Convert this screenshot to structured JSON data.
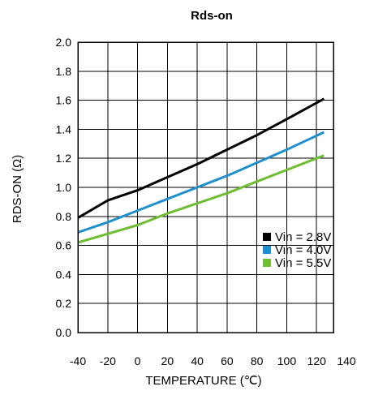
{
  "chart_data": {
    "type": "line",
    "title": "Rds-on",
    "xlabel": "TEMPERATURE (℃)",
    "ylabel": "RDS-ON (Ω)",
    "xlim": [
      -40,
      140
    ],
    "ylim": [
      0,
      2.0
    ],
    "x_ticks": [
      "-40",
      "-20",
      "0",
      "20",
      "40",
      "60",
      "80",
      "100",
      "120",
      "140"
    ],
    "y_ticks": [
      "0.0",
      "0.2",
      "0.4",
      "0.6",
      "0.8",
      "1.0",
      "1.2",
      "1.4",
      "1.6",
      "1.8",
      "2.0"
    ],
    "x_tick_values": [
      -40,
      -20,
      0,
      20,
      40,
      60,
      80,
      100,
      120,
      140
    ],
    "y_tick_values": [
      0,
      0.2,
      0.4,
      0.6,
      0.8,
      1.0,
      1.2,
      1.4,
      1.6,
      1.8,
      2.0
    ],
    "grid": true,
    "legend_position": "right-bottom",
    "series": [
      {
        "name": "Vin = 2.8V",
        "color": "#000000",
        "x": [
          -40,
          -20,
          0,
          20,
          40,
          60,
          80,
          100,
          125
        ],
        "y": [
          0.79,
          0.91,
          0.98,
          1.07,
          1.16,
          1.26,
          1.36,
          1.47,
          1.61
        ]
      },
      {
        "name": "Vin = 4.0V",
        "color": "#1f8fce",
        "x": [
          -40,
          -20,
          0,
          20,
          40,
          60,
          80,
          100,
          125
        ],
        "y": [
          0.69,
          0.76,
          0.84,
          0.92,
          1.0,
          1.08,
          1.17,
          1.26,
          1.38
        ]
      },
      {
        "name": "Vin = 5.5V",
        "color": "#6fbd32",
        "x": [
          -40,
          -20,
          0,
          20,
          40,
          60,
          80,
          100,
          125
        ],
        "y": [
          0.62,
          0.68,
          0.74,
          0.82,
          0.89,
          0.96,
          1.04,
          1.12,
          1.22
        ]
      }
    ]
  }
}
